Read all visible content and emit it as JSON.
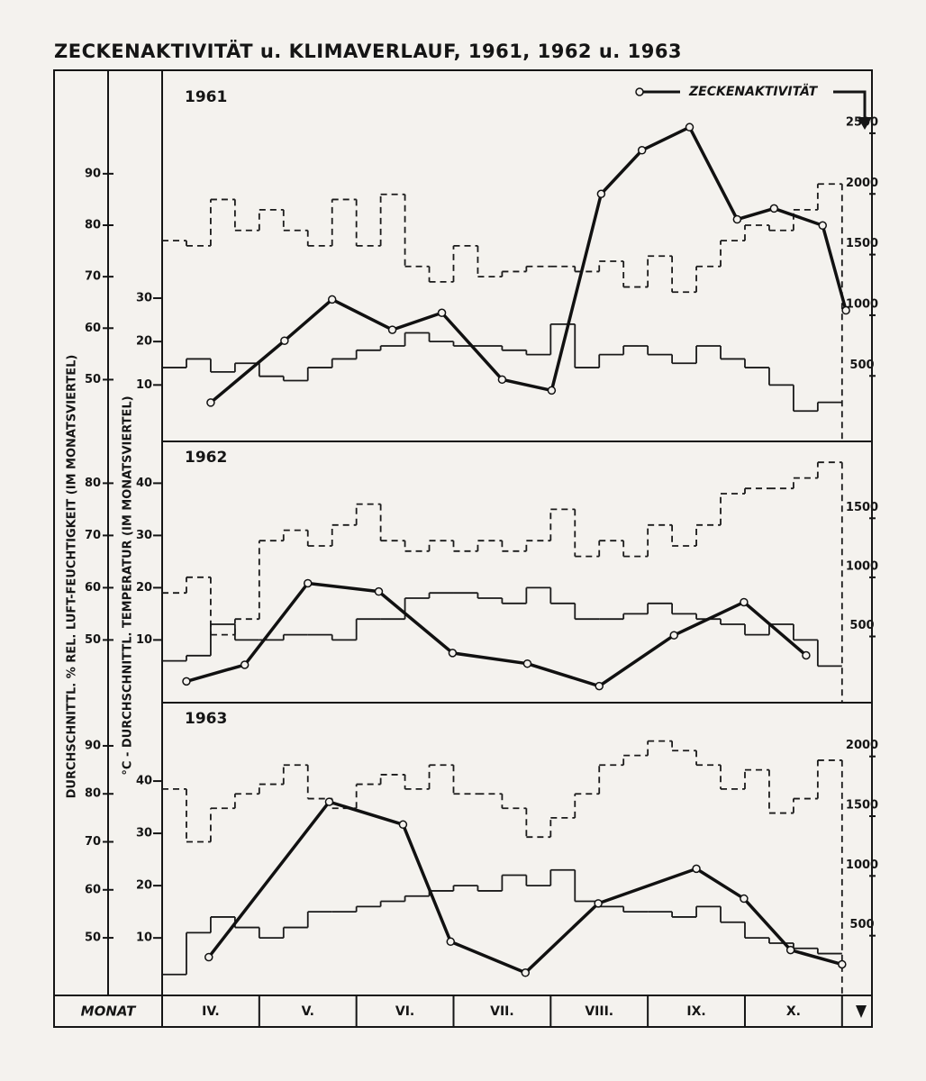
{
  "title": "ZECKENAKTIVITÄT u. KLIMAVERLAUF, 1961, 1962 u. 1963",
  "y_label_humidity": "DURCHSCHNITTL. % REL. LUFT-FEUCHTIGKEIT (IM MONATSVIERTEL)",
  "y_label_temperature": "°C - DURCHSCHNITTL. TEMPERATUR (IM MONATSVIERTEL)",
  "x_label": "MONAT",
  "months": [
    "IV.",
    "V.",
    "VI.",
    "VII.",
    "VIII.",
    "IX.",
    "X."
  ],
  "chart_data": [
    {
      "type": "line",
      "title": "1961",
      "legend": "upper right",
      "xlim": [
        0,
        7.28
      ],
      "ylim": [
        38,
        108
      ],
      "yticks": [
        50,
        60,
        70,
        80,
        90
      ],
      "y3lim": [
        -3,
        80
      ],
      "y3ticks": [
        10,
        20,
        30
      ],
      "y2lim": [
        -40,
        2930
      ],
      "y2ticks": [
        500,
        1000,
        1500,
        2000,
        2500
      ],
      "series": [
        {
          "axis": "y",
          "step": true,
          "line_style": "dashed",
          "color": "#1a1a1a",
          "values": [
            77,
            76,
            85,
            79,
            83,
            79,
            76,
            85,
            76,
            86,
            72,
            69,
            76,
            70,
            71,
            72,
            72,
            71,
            73,
            68,
            74,
            67,
            72,
            77,
            80,
            79,
            83,
            88
          ]
        },
        {
          "axis": "y3",
          "step": true,
          "line_style": "solid",
          "color": "#1a1a1a",
          "values": [
            14,
            16,
            13,
            15,
            12,
            11,
            14,
            16,
            18,
            19,
            22,
            20,
            19,
            19,
            18,
            17,
            24,
            14,
            17,
            19,
            17,
            15,
            19,
            16,
            14,
            10,
            4,
            6
          ]
        },
        {
          "name": "ZECKENAKTIVITÄT",
          "axis": "y2",
          "line_style": "solid",
          "color": "#111111",
          "x": [
            0.5,
            1.26,
            1.75,
            2.37,
            2.88,
            3.5,
            4.01,
            4.52,
            4.94,
            5.43,
            5.92,
            6.3,
            6.8,
            7.04
          ],
          "values": [
            280,
            790,
            1130,
            880,
            1020,
            470,
            380,
            2000,
            2360,
            2550,
            1790,
            1880,
            1740,
            1040
          ]
        }
      ]
    },
    {
      "type": "line",
      "title": "1962",
      "xlim": [
        0,
        7.28
      ],
      "ylim": [
        38,
        88
      ],
      "yticks": [
        50,
        60,
        70,
        80
      ],
      "y3lim": [
        -2,
        48
      ],
      "y3ticks": [
        10,
        20,
        30,
        40
      ],
      "y2lim": [
        -60,
        2150
      ],
      "y2ticks": [
        500,
        1000,
        1500
      ],
      "series": [
        {
          "axis": "y",
          "step": true,
          "line_style": "dashed",
          "color": "#1a1a1a",
          "values": [
            59,
            62,
            51,
            54,
            69,
            71,
            68,
            72,
            76,
            69,
            67,
            69,
            67,
            69,
            67,
            69,
            75,
            66,
            69,
            66,
            72,
            68,
            72,
            78,
            79,
            79,
            81,
            84
          ]
        },
        {
          "axis": "y3",
          "step": true,
          "line_style": "solid",
          "color": "#1a1a1a",
          "values": [
            6,
            7,
            13,
            10,
            10,
            11,
            11,
            10,
            14,
            14,
            18,
            19,
            19,
            18,
            17,
            20,
            17,
            14,
            14,
            15,
            17,
            15,
            14,
            13,
            11,
            13,
            10,
            5
          ]
        },
        {
          "axis": "y2",
          "line_style": "solid",
          "color": "#111111",
          "x": [
            0.25,
            0.85,
            1.5,
            2.23,
            2.99,
            3.76,
            4.5,
            5.27,
            5.99,
            6.63
          ],
          "values": [
            120,
            260,
            950,
            880,
            360,
            270,
            80,
            510,
            790,
            340
          ]
        }
      ]
    },
    {
      "type": "line",
      "title": "1963",
      "xlim": [
        0,
        7.28
      ],
      "ylim": [
        38,
        99
      ],
      "yticks": [
        50,
        60,
        70,
        80,
        90
      ],
      "y3lim": [
        -1,
        55
      ],
      "y3ticks": [
        10,
        20,
        30,
        40
      ],
      "y2lim": [
        0,
        2450
      ],
      "y2ticks": [
        500,
        1000,
        1500,
        2000
      ],
      "series": [
        {
          "axis": "y",
          "step": true,
          "line_style": "dashed",
          "color": "#1a1a1a",
          "values": [
            81,
            70,
            77,
            80,
            82,
            86,
            79,
            77,
            82,
            84,
            81,
            86,
            80,
            80,
            77,
            71,
            75,
            80,
            86,
            88,
            91,
            89,
            86,
            81,
            85,
            76,
            79,
            87
          ]
        },
        {
          "axis": "y3",
          "step": true,
          "line_style": "solid",
          "color": "#1a1a1a",
          "values": [
            3,
            11,
            14,
            12,
            10,
            12,
            15,
            15,
            16,
            17,
            18,
            19,
            20,
            19,
            22,
            20,
            23,
            17,
            16,
            15,
            15,
            14,
            16,
            13,
            10,
            9,
            8,
            7
          ]
        },
        {
          "axis": "y2",
          "line_style": "solid",
          "color": "#111111",
          "x": [
            0.48,
            1.72,
            2.48,
            2.97,
            3.74,
            4.49,
            5.5,
            5.99,
            6.47,
            7.0
          ],
          "values": [
            320,
            1620,
            1430,
            450,
            190,
            770,
            1060,
            810,
            380,
            260
          ]
        }
      ]
    }
  ]
}
